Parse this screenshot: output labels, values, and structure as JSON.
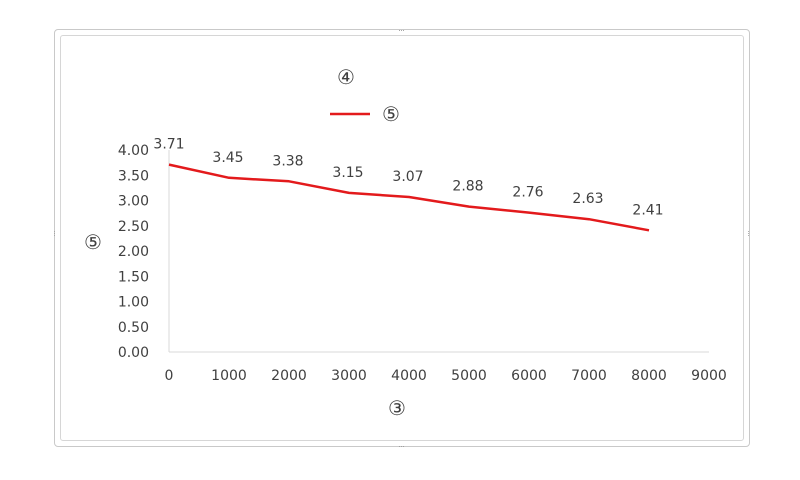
{
  "chart_data": {
    "type": "line",
    "title": "④",
    "xlabel": "③",
    "ylabel": "⑤",
    "legend": {
      "position": "top",
      "entries": [
        "⑤"
      ]
    },
    "grid": false,
    "xlim": [
      0,
      9000
    ],
    "ylim": [
      0,
      4
    ],
    "x_ticks": [
      "0",
      "1000",
      "2000",
      "3000",
      "4000",
      "5000",
      "6000",
      "7000",
      "8000",
      "9000"
    ],
    "y_ticks": [
      "0.00",
      "0.50",
      "1.00",
      "1.50",
      "2.00",
      "2.50",
      "3.00",
      "3.50",
      "4.00"
    ],
    "series": [
      {
        "name": "⑤",
        "color": "#e31a1c",
        "x": [
          0,
          1000,
          2000,
          3000,
          4000,
          5000,
          6000,
          7000,
          8000
        ],
        "y": [
          3.71,
          3.45,
          3.38,
          3.15,
          3.07,
          2.88,
          2.76,
          2.63,
          2.41
        ],
        "labels": [
          "3.71",
          "3.45",
          "3.38",
          "3.15",
          "3.07",
          "2.88",
          "2.76",
          "2.63",
          "2.41"
        ]
      }
    ]
  }
}
